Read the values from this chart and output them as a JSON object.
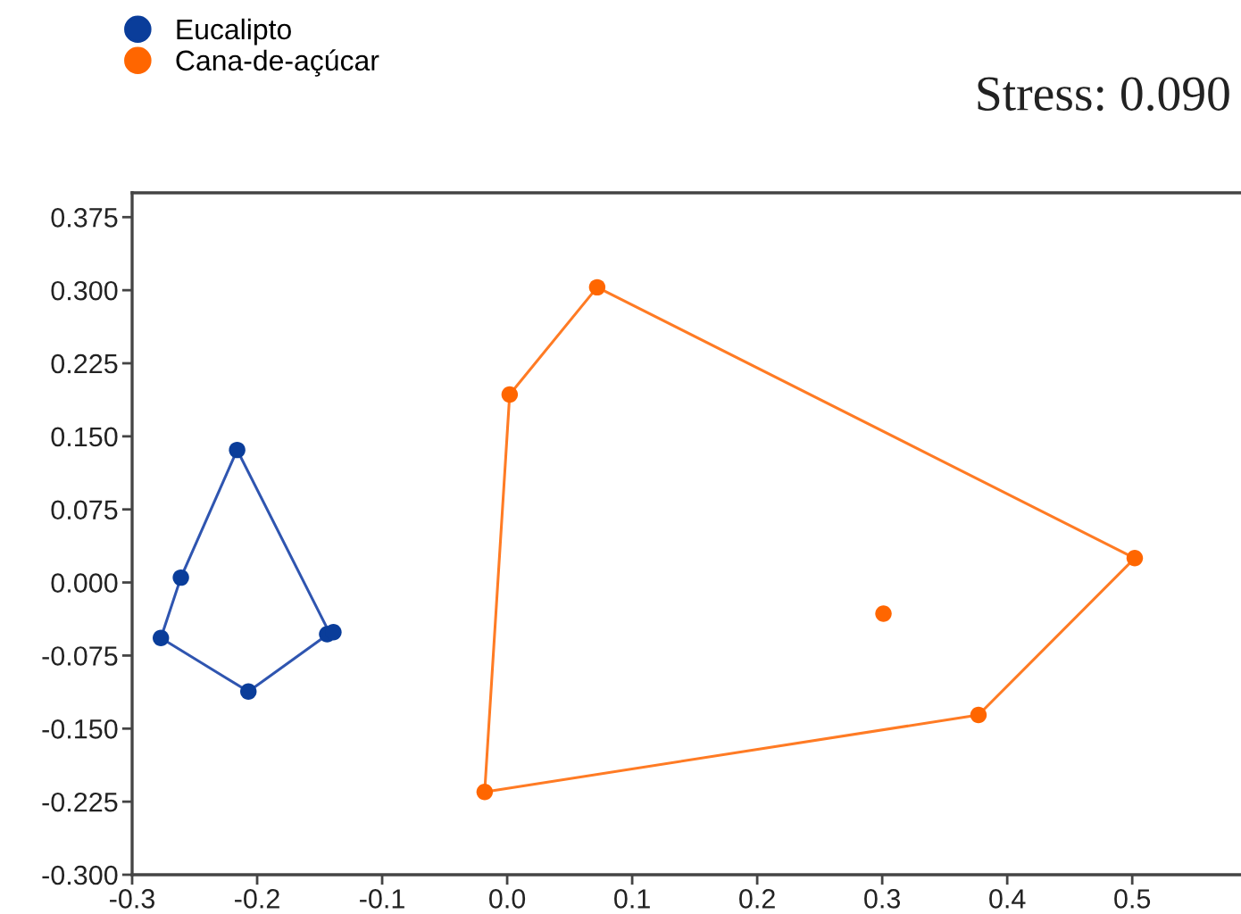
{
  "chart_data": {
    "type": "scatter",
    "legend": "top left",
    "marker": "circle",
    "annotations": [
      "Stress: 0.090"
    ],
    "xlim": [
      -0.3,
      0.587
    ],
    "ylim": [
      -0.3,
      0.4
    ],
    "xticks": [
      -0.3,
      -0.2,
      -0.1,
      {
        "value": 0.0,
        "label": "0.0"
      },
      0.1,
      0.2,
      0.3,
      0.4,
      0.5
    ],
    "yticks": [
      {
        "value": -0.3,
        "label": "-0.300"
      },
      {
        "value": -0.225,
        "label": "-0.225"
      },
      {
        "value": -0.15,
        "label": "-0.150"
      },
      {
        "value": -0.075,
        "label": "-0.075"
      },
      {
        "value": 0.0,
        "label": "0.000"
      },
      {
        "value": 0.075,
        "label": "0.075"
      },
      {
        "value": 0.15,
        "label": "0.150"
      },
      {
        "value": 0.225,
        "label": "0.225"
      },
      {
        "value": 0.3,
        "label": "0.300"
      },
      {
        "value": 0.375,
        "label": "0.375"
      }
    ],
    "series": [
      {
        "type": "line",
        "marker": "none",
        "color": "#2f55b0",
        "x": [
          -0.277,
          -0.261,
          -0.216,
          -0.142
        ],
        "values": [
          -0.057,
          0.005,
          0.136,
          -0.052
        ]
      },
      {
        "type": "line",
        "marker": "none",
        "color": "#2f55b0",
        "x": [
          -0.277,
          -0.207,
          -0.142
        ],
        "values": [
          -0.057,
          -0.112,
          -0.052
        ]
      },
      {
        "type": "line",
        "marker": "none",
        "color": "#ff7b24",
        "x": [
          -0.018,
          0.002,
          0.072,
          0.502
        ],
        "values": [
          -0.215,
          0.193,
          0.303,
          0.025
        ]
      },
      {
        "type": "line",
        "marker": "none",
        "color": "#ff7b24",
        "x": [
          -0.018,
          0.377,
          0.502
        ],
        "values": [
          -0.215,
          -0.136,
          0.025
        ]
      },
      {
        "name": "Eucalipto",
        "color": "#0a3d9a",
        "x": [
          -0.216,
          -0.261,
          -0.277,
          -0.207,
          -0.144,
          -0.139
        ],
        "values": [
          0.136,
          0.005,
          -0.057,
          -0.112,
          -0.053,
          -0.051
        ]
      },
      {
        "name": "Cana-de-açúcar",
        "color": "#ff6600",
        "x": [
          0.072,
          0.002,
          -0.018,
          0.377,
          0.502,
          0.301
        ],
        "values": [
          0.303,
          0.193,
          -0.215,
          -0.136,
          0.025,
          -0.032
        ]
      }
    ]
  }
}
